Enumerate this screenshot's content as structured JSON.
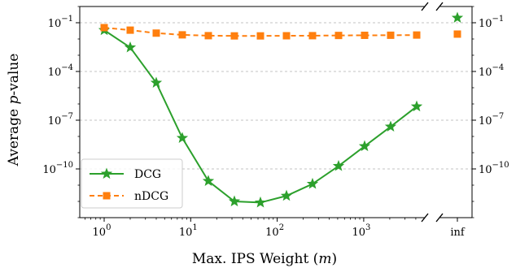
{
  "chart_data": {
    "type": "line",
    "xlabel": "Max. IPS Weight (m)",
    "ylabel": "Average p-value",
    "x_scale": "log2",
    "y_scale": "log10",
    "x": [
      1,
      2,
      4,
      8,
      16,
      32,
      64,
      128,
      256,
      512,
      1024,
      2048,
      4096
    ],
    "x_ticks": [
      {
        "value": 1,
        "label": "10",
        "exp": "0"
      },
      {
        "value": 10,
        "label": "10",
        "exp": "1"
      },
      {
        "value": 100,
        "label": "10",
        "exp": "2"
      },
      {
        "value": 1000,
        "label": "10",
        "exp": "3"
      }
    ],
    "inf_label": "inf",
    "y_ticks": [
      {
        "value": 0.1,
        "label": "10",
        "exp": "−1"
      },
      {
        "value": 0.0001,
        "label": "10",
        "exp": "−4"
      },
      {
        "value": 1e-07,
        "label": "10",
        "exp": "−7"
      },
      {
        "value": 1e-10,
        "label": "10",
        "exp": "−10"
      }
    ],
    "ylim": [
      1e-13,
      1
    ],
    "grid": "horizontal dotted",
    "legend_position": "lower-left",
    "series": [
      {
        "name": "DCG",
        "color": "#2ca02c",
        "marker": "star",
        "linestyle": "solid",
        "values": [
          0.035,
          0.003,
          2e-05,
          8e-09,
          1.8e-11,
          1e-12,
          8.5e-13,
          2.2e-12,
          1.2e-11,
          1.5e-10,
          2.5e-09,
          4e-08,
          7e-07
        ],
        "inf_value": 0.2
      },
      {
        "name": "nDCG",
        "color": "#ff7f0e",
        "marker": "square",
        "linestyle": "dashed",
        "values": [
          0.05,
          0.035,
          0.023,
          0.018,
          0.016,
          0.0155,
          0.0155,
          0.0158,
          0.016,
          0.0165,
          0.0168,
          0.017,
          0.0175
        ],
        "inf_value": 0.02
      }
    ]
  }
}
